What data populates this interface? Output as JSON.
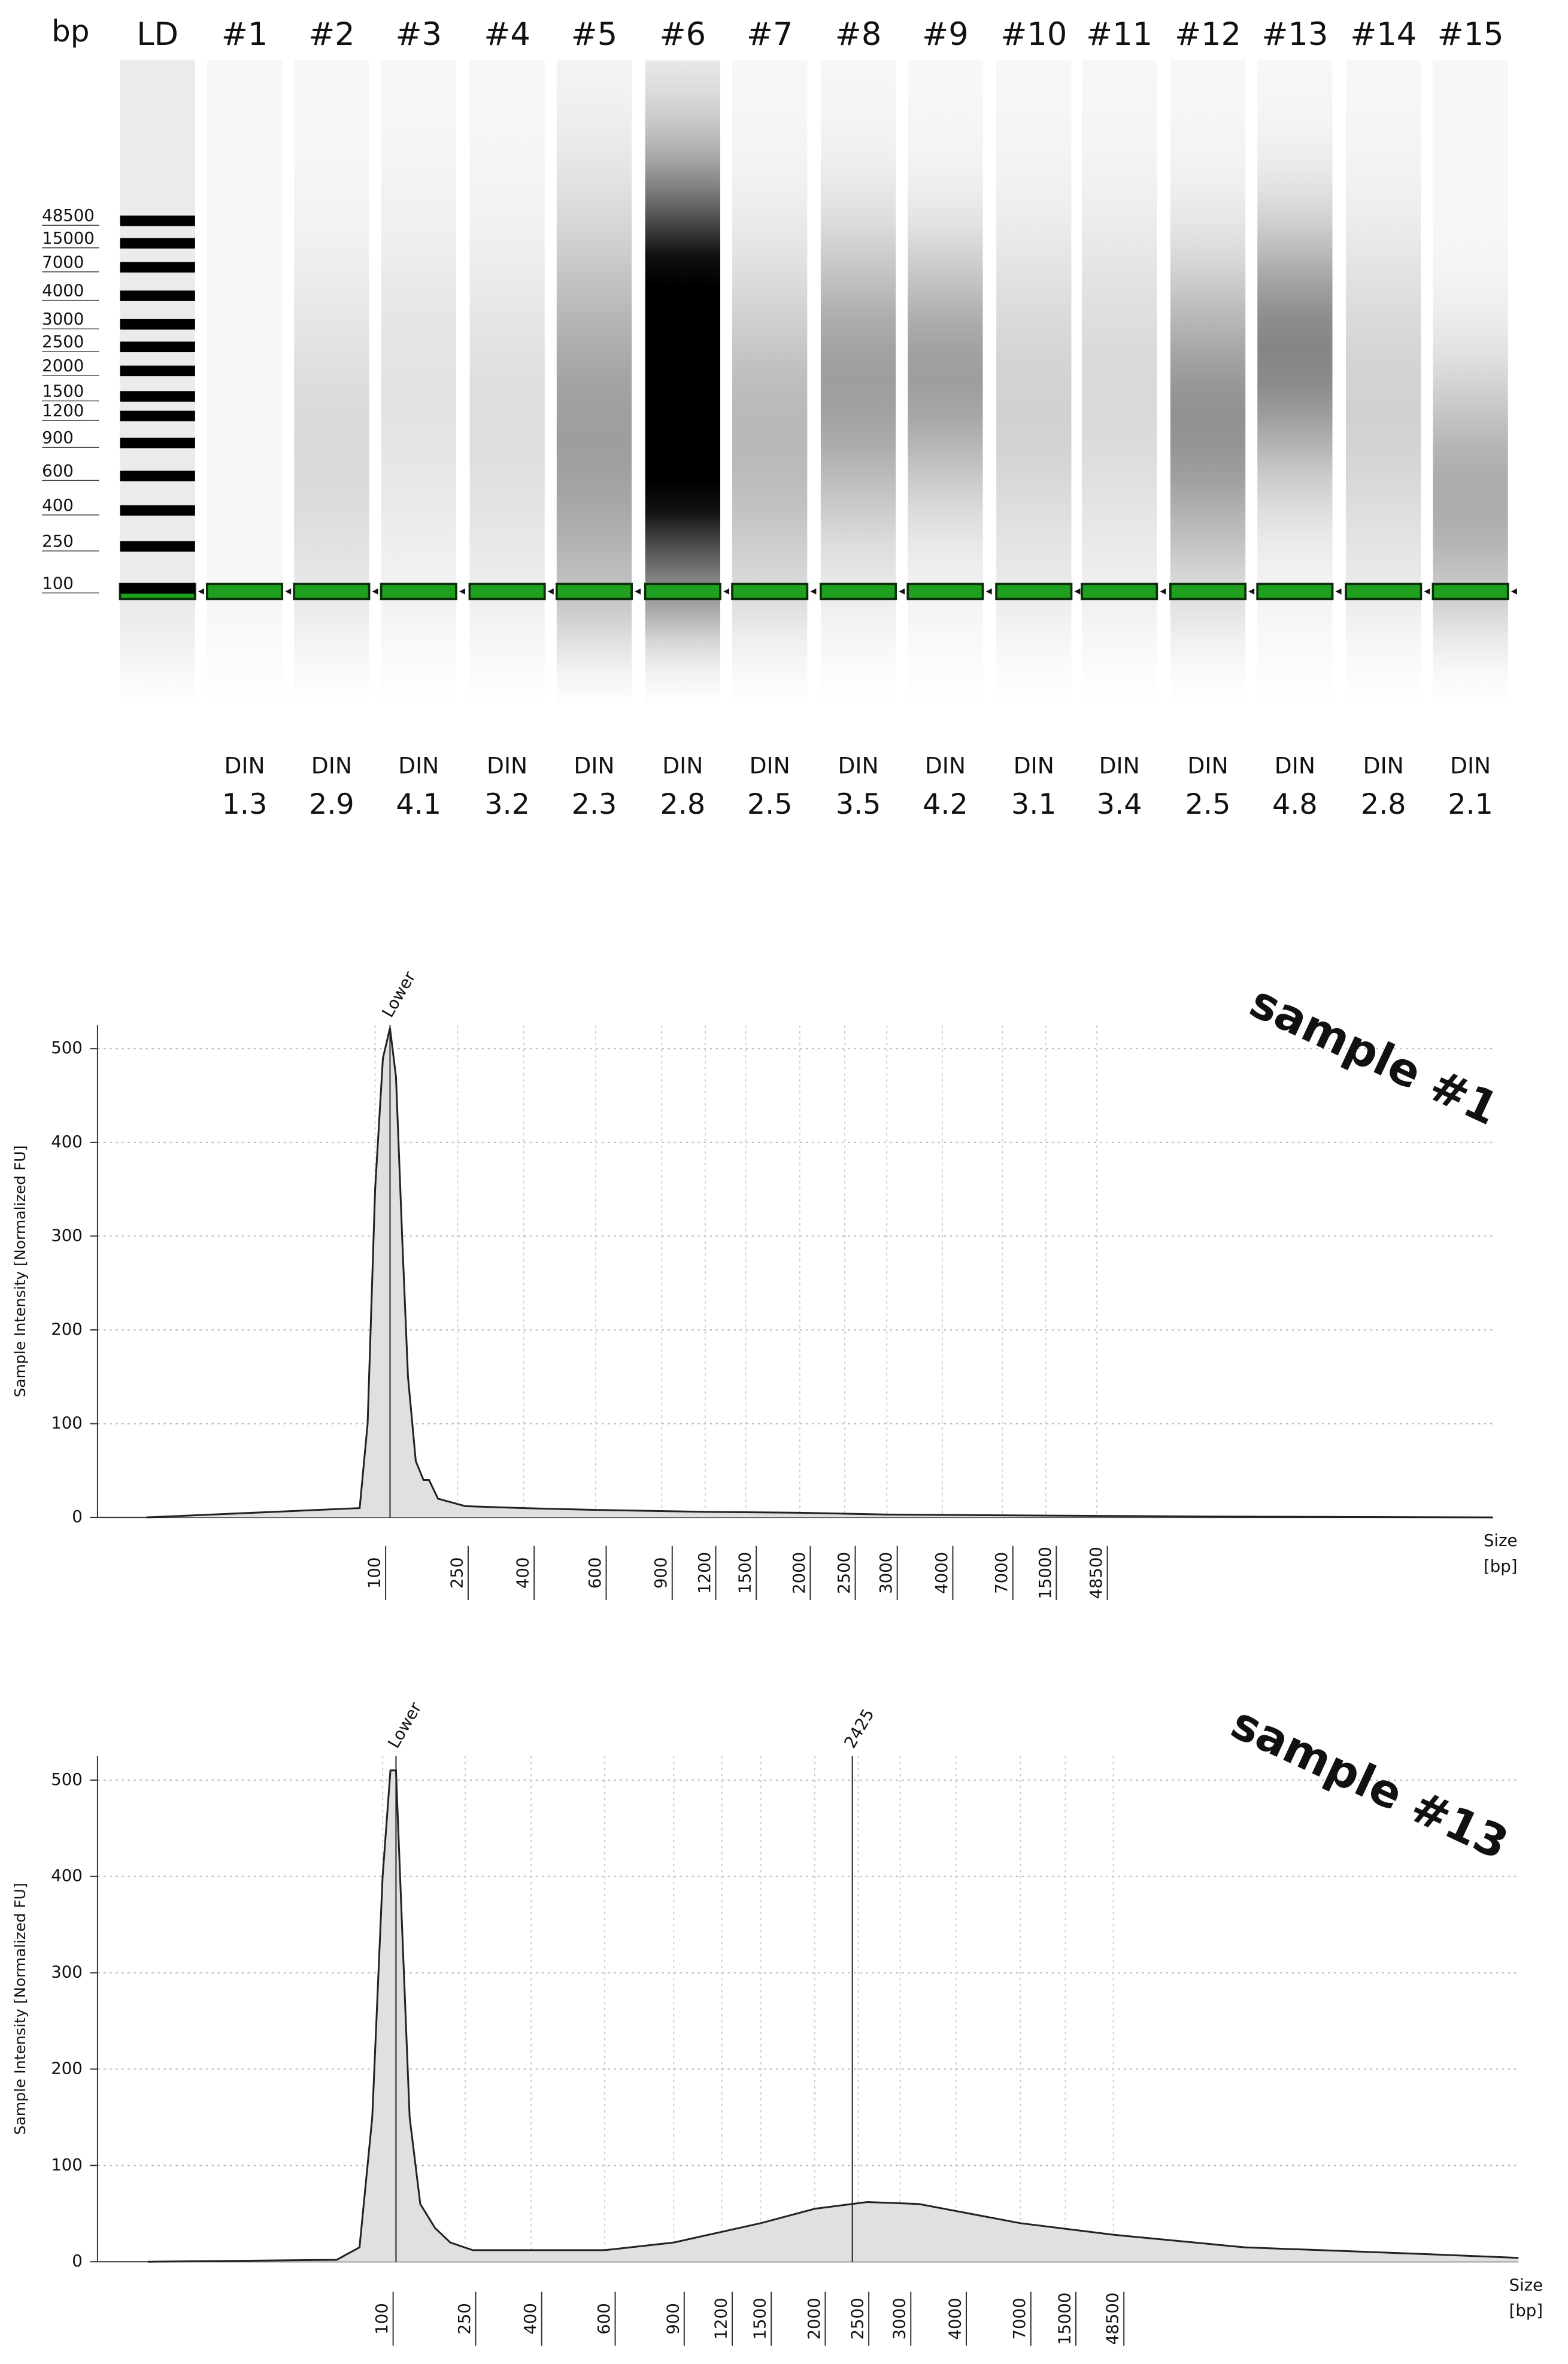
{
  "gel": {
    "unit_label": "bp",
    "lanes": [
      "LD",
      "#1",
      "#2",
      "#3",
      "#4",
      "#5",
      "#6",
      "#7",
      "#8",
      "#9",
      "#10",
      "#11",
      "#12",
      "#13",
      "#14",
      "#15"
    ],
    "ladder": [
      48500,
      15000,
      7000,
      4000,
      3000,
      2500,
      2000,
      1500,
      1200,
      900,
      600,
      400,
      250,
      100
    ],
    "din_label": "DIN",
    "din": [
      1.3,
      2.9,
      4.1,
      3.2,
      2.3,
      2.8,
      2.5,
      3.5,
      4.2,
      3.1,
      3.4,
      2.5,
      4.8,
      2.8,
      2.1
    ]
  },
  "chart_data": [
    {
      "type": "area",
      "title": "sample #1",
      "y_label": "Sample Intensity [Normalized FU]",
      "x_label": [
        "Size",
        "[bp]"
      ],
      "xlim": [
        10,
        1000000
      ],
      "xticks": [
        100,
        250,
        400,
        600,
        900,
        1200,
        1500,
        2000,
        2500,
        3000,
        4000,
        7000,
        15000,
        48500
      ],
      "ylim": [
        0,
        525
      ],
      "yticks": [
        0,
        100,
        200,
        300,
        400,
        500
      ],
      "grid": true,
      "color": "#e0e0e0",
      "x": [
        15,
        88,
        94,
        100,
        109,
        118,
        126,
        135,
        144,
        157,
        171,
        182,
        201,
        264,
        400,
        600,
        1200,
        2000,
        3000,
        16000,
        107000,
        1000000
      ],
      "values": [
        0,
        10,
        100,
        350,
        490,
        522,
        470,
        300,
        150,
        60,
        40,
        40,
        20,
        12,
        10,
        8,
        6,
        5,
        3,
        2,
        1,
        0
      ],
      "markers": [
        {
          "label": "Lower",
          "x": 118
        }
      ]
    },
    {
      "type": "area",
      "title": "sample #13",
      "y_label": "Sample Intensity [Normalized FU]",
      "x_label": [
        "Size",
        "[bp]"
      ],
      "xlim": [
        10,
        1000000
      ],
      "xticks": [
        100,
        250,
        400,
        600,
        900,
        1200,
        1500,
        2000,
        2500,
        3000,
        4000,
        7000,
        15000,
        48500
      ],
      "ylim": [
        0,
        525
      ],
      "yticks": [
        0,
        100,
        200,
        300,
        400,
        500
      ],
      "grid": true,
      "color": "#e0e0e0",
      "x": [
        15,
        69,
        83,
        92,
        100,
        109,
        116,
        124,
        135,
        152,
        179,
        212,
        264,
        600,
        900,
        1500,
        2000,
        2600,
        3300,
        7000,
        48500,
        129000,
        500000,
        1000000
      ],
      "values": [
        0,
        2,
        15,
        150,
        400,
        510,
        510,
        350,
        150,
        60,
        35,
        20,
        12,
        12,
        20,
        40,
        55,
        62,
        60,
        40,
        28,
        15,
        8,
        4
      ],
      "markers": [
        {
          "label": "Lower",
          "x": 116
        },
        {
          "label": "2425",
          "x": 2425
        }
      ]
    }
  ]
}
